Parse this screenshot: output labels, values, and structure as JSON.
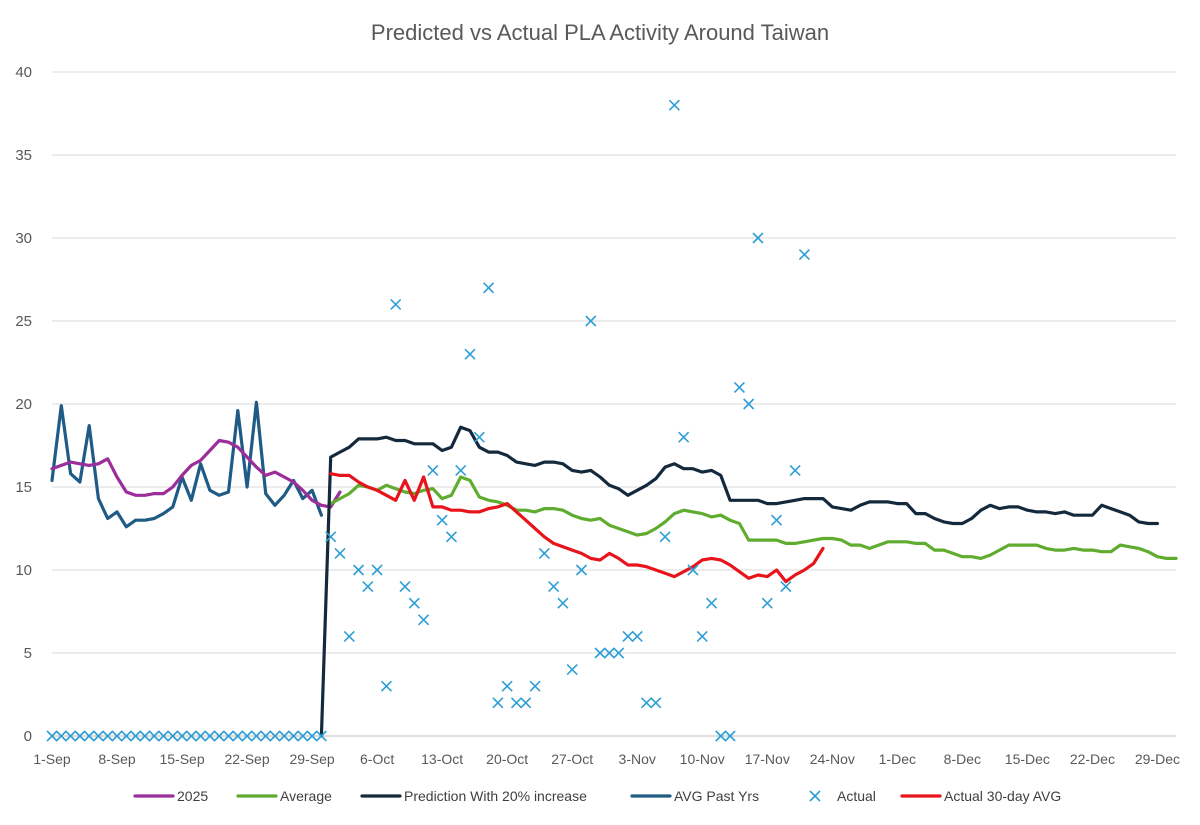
{
  "chart_data": {
    "type": "line",
    "title": "Predicted vs Actual PLA Activity Around Taiwan",
    "xlabel": "",
    "ylabel": "",
    "ylim": [
      0,
      40
    ],
    "y_ticks": [
      0,
      5,
      10,
      15,
      20,
      25,
      30,
      35,
      40
    ],
    "x_range_days": [
      0,
      121
    ],
    "x_tick_labels": [
      {
        "day": 0,
        "label": "1-Sep"
      },
      {
        "day": 7,
        "label": "8-Sep"
      },
      {
        "day": 14,
        "label": "15-Sep"
      },
      {
        "day": 21,
        "label": "22-Sep"
      },
      {
        "day": 28,
        "label": "29-Sep"
      },
      {
        "day": 35,
        "label": "6-Oct"
      },
      {
        "day": 42,
        "label": "13-Oct"
      },
      {
        "day": 49,
        "label": "20-Oct"
      },
      {
        "day": 56,
        "label": "27-Oct"
      },
      {
        "day": 63,
        "label": "3-Nov"
      },
      {
        "day": 70,
        "label": "10-Nov"
      },
      {
        "day": 77,
        "label": "17-Nov"
      },
      {
        "day": 84,
        "label": "24-Nov"
      },
      {
        "day": 91,
        "label": "1-Dec"
      },
      {
        "day": 98,
        "label": "8-Dec"
      },
      {
        "day": 105,
        "label": "15-Dec"
      },
      {
        "day": 112,
        "label": "22-Dec"
      },
      {
        "day": 119,
        "label": "29-Dec"
      }
    ],
    "grid": true,
    "legend_position": "bottom",
    "series": [
      {
        "name": "2025",
        "color": "#9b2e9b",
        "kind": "line",
        "start_day": 0,
        "values": [
          16.1,
          16.3,
          16.5,
          16.4,
          16.3,
          16.4,
          16.7,
          15.6,
          14.7,
          14.5,
          14.5,
          14.6,
          14.6,
          15.0,
          15.7,
          16.3,
          16.6,
          17.2,
          17.8,
          17.7,
          17.4,
          16.8,
          16.2,
          15.7,
          15.9,
          15.6,
          15.3,
          14.8,
          14.2,
          13.9,
          13.8,
          14.7
        ]
      },
      {
        "name": "Average",
        "color": "#5fac2f",
        "kind": "line",
        "start_day": 30,
        "values": [
          14.0,
          14.3,
          14.6,
          15.1,
          15.0,
          14.8,
          15.1,
          14.9,
          14.7,
          14.6,
          14.8,
          14.9,
          14.3,
          14.5,
          15.6,
          15.4,
          14.4,
          14.2,
          14.1,
          13.9,
          13.6,
          13.6,
          13.5,
          13.7,
          13.7,
          13.6,
          13.3,
          13.1,
          13.0,
          13.1,
          12.7,
          12.5,
          12.3,
          12.1,
          12.2,
          12.5,
          12.9,
          13.4,
          13.6,
          13.5,
          13.4,
          13.2,
          13.3,
          13.0,
          12.8,
          11.8,
          11.8,
          11.8,
          11.8,
          11.6,
          11.6,
          11.7,
          11.8,
          11.9,
          11.9,
          11.8,
          11.5,
          11.5,
          11.3,
          11.5,
          11.7,
          11.7,
          11.7,
          11.6,
          11.6,
          11.2,
          11.2,
          11.0,
          10.8,
          10.8,
          10.7,
          10.9,
          11.2,
          11.5,
          11.5,
          11.5,
          11.5,
          11.3,
          11.2,
          11.2,
          11.3,
          11.2,
          11.2,
          11.1,
          11.1,
          11.5,
          11.4,
          11.3,
          11.1,
          10.8,
          10.7,
          10.7
        ]
      },
      {
        "name": "Prediction With 20% increase",
        "color": "#15293c",
        "kind": "line",
        "start_day": 29,
        "values": [
          0,
          16.8,
          17.1,
          17.4,
          17.9,
          17.9,
          17.9,
          18.0,
          17.8,
          17.8,
          17.6,
          17.6,
          17.6,
          17.2,
          17.4,
          18.6,
          18.4,
          17.4,
          17.1,
          17.1,
          16.9,
          16.5,
          16.4,
          16.3,
          16.5,
          16.5,
          16.4,
          16.0,
          15.9,
          16.0,
          15.6,
          15.1,
          14.9,
          14.5,
          14.8,
          15.1,
          15.5,
          16.2,
          16.4,
          16.1,
          16.1,
          15.9,
          16.0,
          15.7,
          14.2,
          14.2,
          14.2,
          14.2,
          14.0,
          14.0,
          14.1,
          14.2,
          14.3,
          14.3,
          14.3,
          13.8,
          13.7,
          13.6,
          13.9,
          14.1,
          14.1,
          14.1,
          14.0,
          14.0,
          13.4,
          13.4,
          13.1,
          12.9,
          12.8,
          12.8,
          13.1,
          13.6,
          13.9,
          13.7,
          13.8,
          13.8,
          13.6,
          13.5,
          13.5,
          13.4,
          13.5,
          13.3,
          13.3,
          13.3,
          13.9,
          13.7,
          13.5,
          13.3,
          12.9,
          12.8,
          12.8
        ]
      },
      {
        "name": "AVG Past Yrs",
        "color": "#1f5b85",
        "kind": "line",
        "start_day": 0,
        "values": [
          15.4,
          19.9,
          15.8,
          15.3,
          18.7,
          14.3,
          13.1,
          13.5,
          12.6,
          13.0,
          13.0,
          13.1,
          13.4,
          13.8,
          15.6,
          14.2,
          16.4,
          14.8,
          14.5,
          14.7,
          19.6,
          15.0,
          20.1,
          14.6,
          13.9,
          14.5,
          15.4,
          14.3,
          14.8,
          13.3
        ]
      },
      {
        "name": "Actual",
        "color": "#2e9fd6",
        "kind": "scatter",
        "points": [
          [
            0,
            0
          ],
          [
            1,
            0
          ],
          [
            2,
            0
          ],
          [
            3,
            0
          ],
          [
            4,
            0
          ],
          [
            5,
            0
          ],
          [
            6,
            0
          ],
          [
            7,
            0
          ],
          [
            8,
            0
          ],
          [
            9,
            0
          ],
          [
            10,
            0
          ],
          [
            11,
            0
          ],
          [
            12,
            0
          ],
          [
            13,
            0
          ],
          [
            14,
            0
          ],
          [
            15,
            0
          ],
          [
            16,
            0
          ],
          [
            17,
            0
          ],
          [
            18,
            0
          ],
          [
            19,
            0
          ],
          [
            20,
            0
          ],
          [
            21,
            0
          ],
          [
            22,
            0
          ],
          [
            23,
            0
          ],
          [
            24,
            0
          ],
          [
            25,
            0
          ],
          [
            26,
            0
          ],
          [
            27,
            0
          ],
          [
            28,
            0
          ],
          [
            29,
            0
          ],
          [
            30,
            12
          ],
          [
            31,
            11
          ],
          [
            32,
            6
          ],
          [
            33,
            10
          ],
          [
            34,
            9
          ],
          [
            35,
            10
          ],
          [
            36,
            3
          ],
          [
            37,
            26
          ],
          [
            38,
            9
          ],
          [
            39,
            8
          ],
          [
            40,
            7
          ],
          [
            41,
            16
          ],
          [
            42,
            13
          ],
          [
            43,
            12
          ],
          [
            44,
            16
          ],
          [
            45,
            23
          ],
          [
            46,
            18
          ],
          [
            47,
            27
          ],
          [
            48,
            2
          ],
          [
            49,
            3
          ],
          [
            50,
            2
          ],
          [
            51,
            2
          ],
          [
            52,
            3
          ],
          [
            53,
            11
          ],
          [
            54,
            9
          ],
          [
            55,
            8
          ],
          [
            56,
            4
          ],
          [
            57,
            10
          ],
          [
            58,
            25
          ],
          [
            59,
            5
          ],
          [
            60,
            5
          ],
          [
            61,
            5
          ],
          [
            62,
            6
          ],
          [
            63,
            6
          ],
          [
            64,
            2
          ],
          [
            65,
            2
          ],
          [
            66,
            12
          ],
          [
            67,
            38
          ],
          [
            68,
            18
          ],
          [
            69,
            10
          ],
          [
            70,
            6
          ],
          [
            71,
            8
          ],
          [
            72,
            0
          ],
          [
            73,
            0
          ],
          [
            74,
            21
          ],
          [
            75,
            20
          ],
          [
            76,
            30
          ],
          [
            77,
            8
          ],
          [
            78,
            13
          ],
          [
            79,
            9
          ],
          [
            80,
            16
          ],
          [
            81,
            29
          ]
        ]
      },
      {
        "name": "Actual 30-day AVG",
        "color": "#e8141b",
        "kind": "line",
        "start_day": 30,
        "values": [
          15.8,
          15.7,
          15.7,
          15.3,
          15.0,
          14.8,
          14.5,
          14.2,
          15.4,
          14.2,
          15.6,
          13.8,
          13.8,
          13.6,
          13.6,
          13.5,
          13.5,
          13.7,
          13.8,
          14.0,
          13.5,
          13.0,
          12.5,
          12.0,
          11.6,
          11.4,
          11.2,
          11.0,
          10.7,
          10.6,
          11.0,
          10.7,
          10.3,
          10.3,
          10.2,
          10.0,
          9.8,
          9.6,
          9.9,
          10.2,
          10.6,
          10.7,
          10.6,
          10.3,
          9.9,
          9.5,
          9.7,
          9.6,
          10.0,
          9.3,
          9.7,
          10.0,
          10.4,
          11.3
        ]
      }
    ]
  }
}
